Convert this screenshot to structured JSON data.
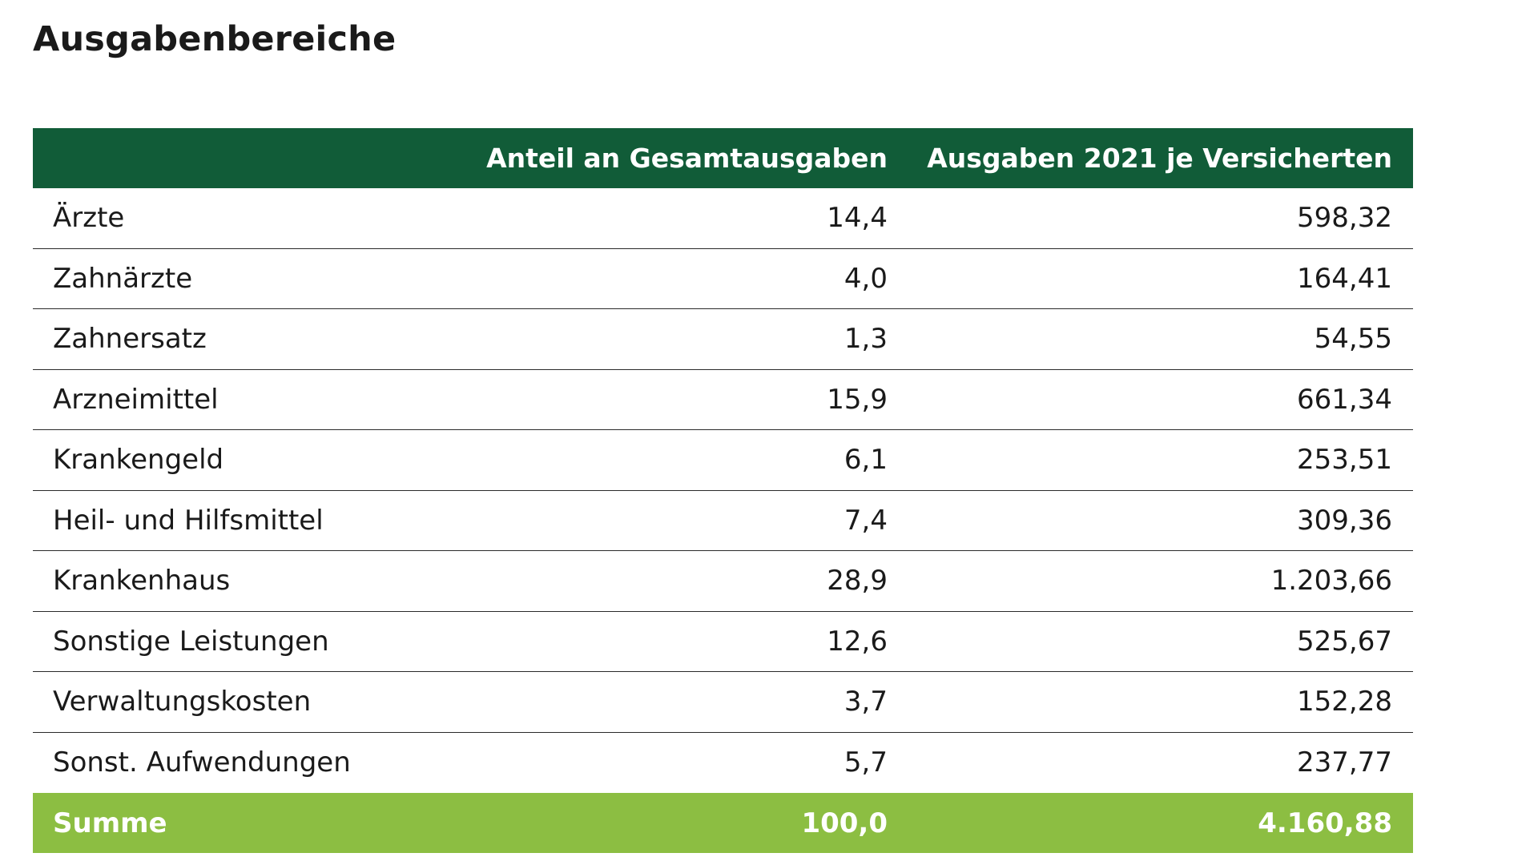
{
  "chart_data": {
    "type": "table",
    "title": "Ausgabenbereiche",
    "columns": [
      "",
      "Anteil an Gesamtausgaben",
      "Ausgaben 2021 je Versicherten"
    ],
    "rows": [
      {
        "label": "Ärzte",
        "anteil": "14,4",
        "ausgaben": "598,32"
      },
      {
        "label": "Zahnärzte",
        "anteil": "4,0",
        "ausgaben": "164,41"
      },
      {
        "label": "Zahnersatz",
        "anteil": "1,3",
        "ausgaben": "54,55"
      },
      {
        "label": "Arzneimittel",
        "anteil": "15,9",
        "ausgaben": "661,34"
      },
      {
        "label": "Krankengeld",
        "anteil": "6,1",
        "ausgaben": "253,51"
      },
      {
        "label": "Heil- und Hilfsmittel",
        "anteil": "7,4",
        "ausgaben": "309,36"
      },
      {
        "label": "Krankenhaus",
        "anteil": "28,9",
        "ausgaben": "1.203,66"
      },
      {
        "label": "Sonstige Leistungen",
        "anteil": "12,6",
        "ausgaben": "525,67"
      },
      {
        "label": "Verwaltungskosten",
        "anteil": "3,7",
        "ausgaben": "152,28"
      },
      {
        "label": "Sonst. Aufwendungen",
        "anteil": "5,7",
        "ausgaben": "237,77"
      }
    ],
    "total": {
      "label": "Summe",
      "anteil": "100,0",
      "ausgaben": "4.160,88"
    }
  },
  "colors": {
    "header_bg": "#115c38",
    "total_bg": "#8cbe42",
    "header_text": "#ffffff"
  }
}
